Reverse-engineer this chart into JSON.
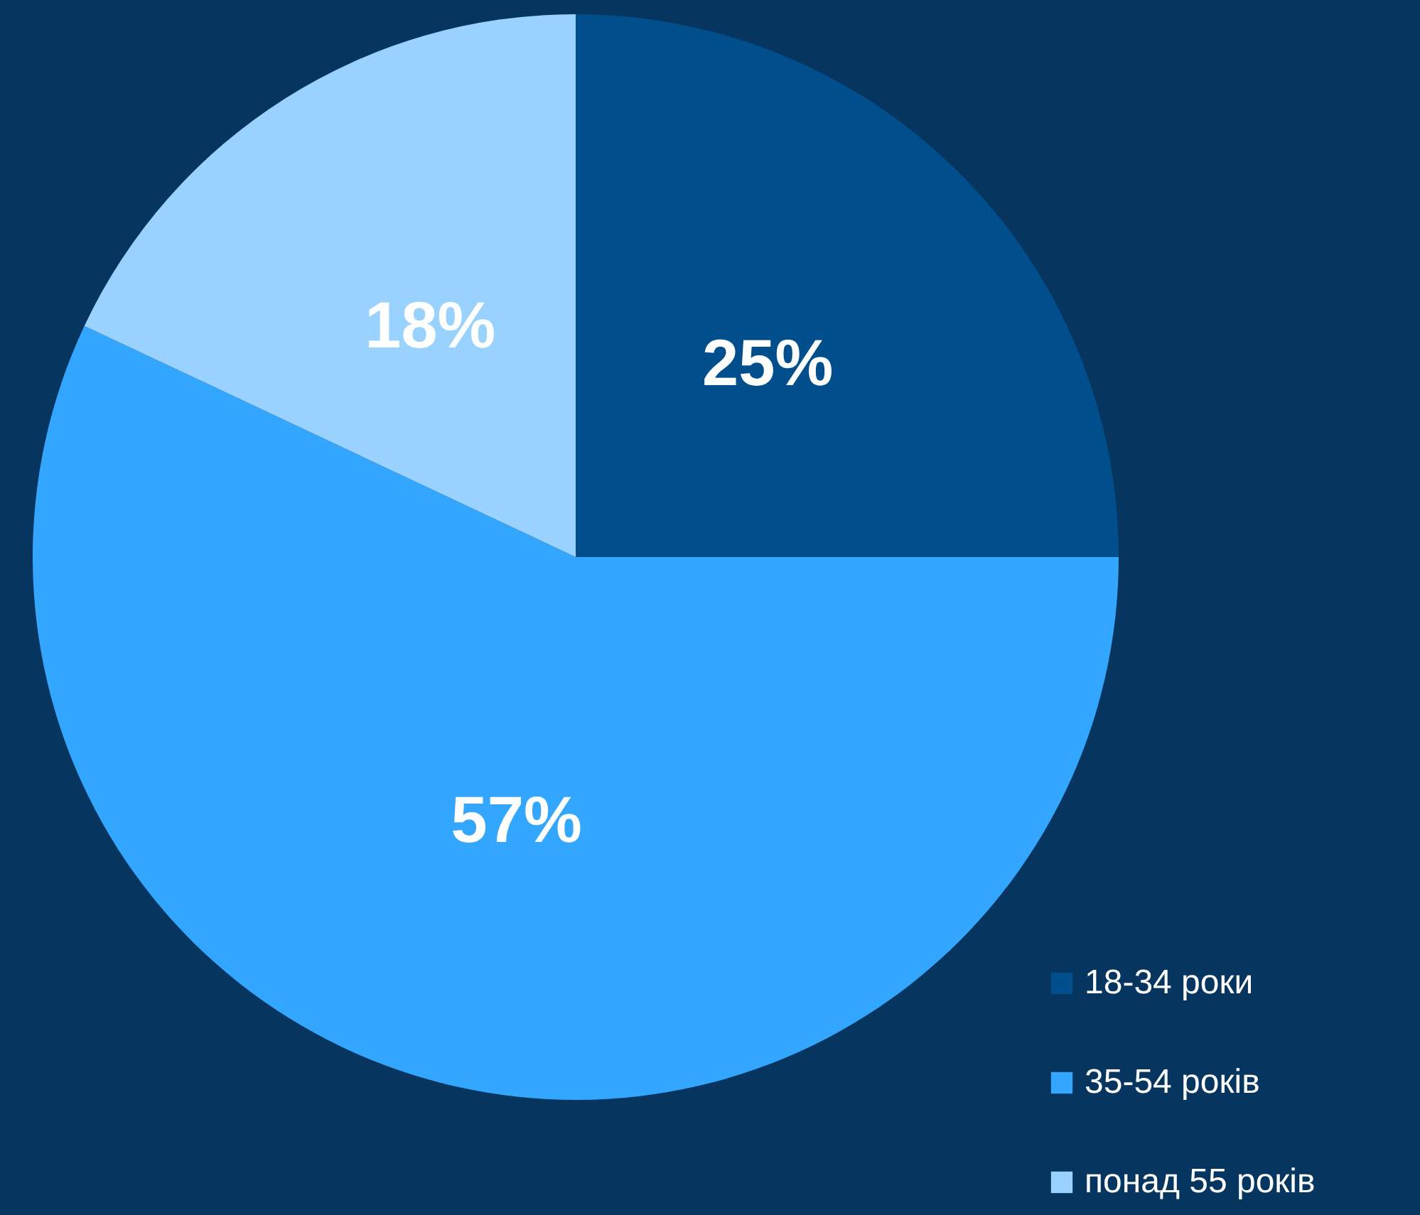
{
  "chart_data": {
    "type": "pie",
    "categories": [
      "18-34 роки",
      "35-54 років",
      "понад 55 років"
    ],
    "values": [
      25,
      57,
      18
    ],
    "value_labels": [
      "25%",
      "57%",
      "18%"
    ],
    "colors": [
      "#004f8c",
      "#33a6ff",
      "#99d1ff"
    ],
    "legend": "bottom right"
  }
}
